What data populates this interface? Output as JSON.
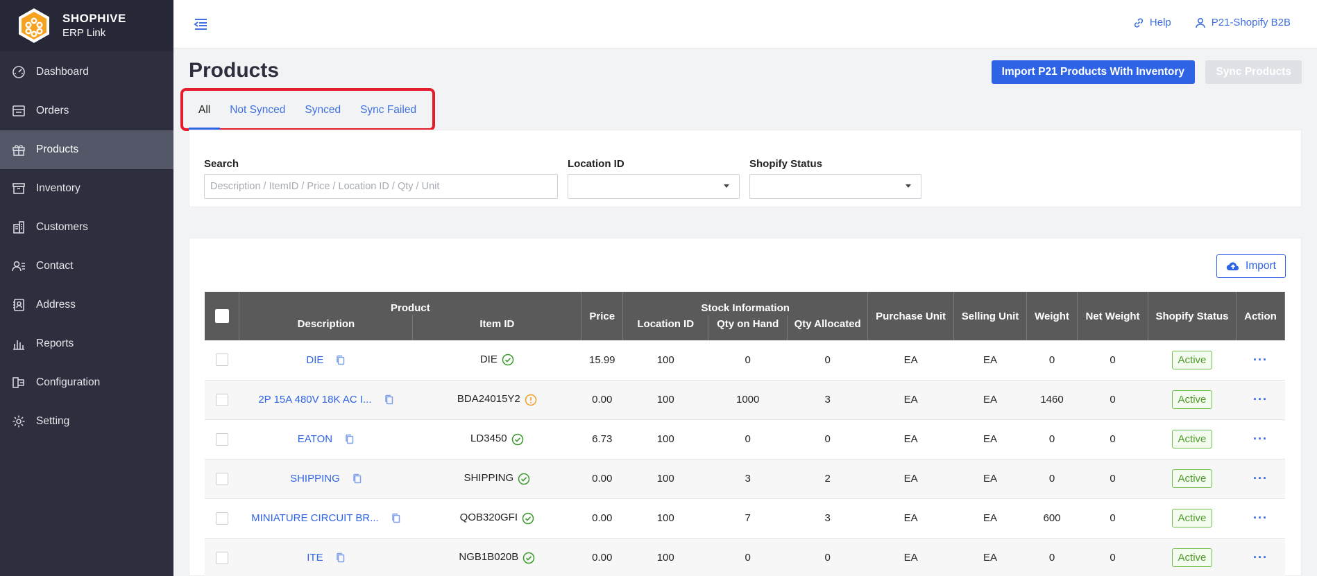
{
  "brand": {
    "name": "SHOPHIVE",
    "subtitle": "ERP Link"
  },
  "sidebar": {
    "items": [
      {
        "label": "Dashboard",
        "icon": "gauge-icon"
      },
      {
        "label": "Orders",
        "icon": "orders-icon"
      },
      {
        "label": "Products",
        "icon": "gift-icon",
        "active": true
      },
      {
        "label": "Inventory",
        "icon": "archive-icon"
      },
      {
        "label": "Customers",
        "icon": "building-icon"
      },
      {
        "label": "Contact",
        "icon": "contact-icon"
      },
      {
        "label": "Address",
        "icon": "address-book-icon"
      },
      {
        "label": "Reports",
        "icon": "bar-chart-icon"
      },
      {
        "label": "Configuration",
        "icon": "configuration-icon"
      },
      {
        "label": "Setting",
        "icon": "gear-icon"
      }
    ]
  },
  "topbar": {
    "help": "Help",
    "account": "P21-Shopify B2B"
  },
  "page": {
    "title": "Products",
    "import_button": "Import P21 Products With Inventory",
    "sync_button": "Sync Products"
  },
  "tabs": [
    "All",
    "Not Synced",
    "Synced",
    "Sync Failed"
  ],
  "filters": {
    "search_label": "Search",
    "search_placeholder": "Description / ItemID / Price / Location ID / Qty / Unit",
    "location_label": "Location ID",
    "status_label": "Shopify Status"
  },
  "table": {
    "import_button": "Import",
    "headers": {
      "product": "Product",
      "description": "Description",
      "item_id": "Item ID",
      "price": "Price",
      "stock": "Stock Information",
      "location_id": "Location ID",
      "qty_on_hand": "Qty on Hand",
      "qty_allocated": "Qty Allocated",
      "purchase_unit": "Purchase Unit",
      "selling_unit": "Selling Unit",
      "weight": "Weight",
      "net_weight": "Net Weight",
      "shopify_status": "Shopify Status",
      "action": "Action"
    },
    "rows": [
      {
        "description": "DIE",
        "item_id": "DIE",
        "sync": "ok",
        "price": "15.99",
        "location": "100",
        "on_hand": "0",
        "allocated": "0",
        "purchase_unit": "EA",
        "selling_unit": "EA",
        "weight": "0",
        "net_weight": "0",
        "status": "Active",
        "action": "···"
      },
      {
        "description": "2P 15A 480V 18K AC I...",
        "item_id": "BDA24015Y2",
        "sync": "warning",
        "price": "0.00",
        "location": "100",
        "on_hand": "1000",
        "allocated": "3",
        "purchase_unit": "EA",
        "selling_unit": "EA",
        "weight": "1460",
        "net_weight": "0",
        "status": "Active",
        "action": "···"
      },
      {
        "description": "EATON",
        "item_id": "LD3450",
        "sync": "ok",
        "price": "6.73",
        "location": "100",
        "on_hand": "0",
        "allocated": "0",
        "purchase_unit": "EA",
        "selling_unit": "EA",
        "weight": "0",
        "net_weight": "0",
        "status": "Active",
        "action": "···"
      },
      {
        "description": "SHIPPING",
        "item_id": "SHIPPING",
        "sync": "ok",
        "price": "0.00",
        "location": "100",
        "on_hand": "3",
        "allocated": "2",
        "purchase_unit": "EA",
        "selling_unit": "EA",
        "weight": "0",
        "net_weight": "0",
        "status": "Active",
        "action": "···"
      },
      {
        "description": "MINIATURE CIRCUIT BR...",
        "item_id": "QOB320GFI",
        "sync": "ok",
        "price": "0.00",
        "location": "100",
        "on_hand": "7",
        "allocated": "3",
        "purchase_unit": "EA",
        "selling_unit": "EA",
        "weight": "600",
        "net_weight": "0",
        "status": "Active",
        "action": "···"
      },
      {
        "description": "ITE",
        "item_id": "NGB1B020B",
        "sync": "ok",
        "price": "0.00",
        "location": "100",
        "on_hand": "0",
        "allocated": "0",
        "purchase_unit": "EA",
        "selling_unit": "EA",
        "weight": "0",
        "net_weight": "0",
        "status": "Active",
        "action": "···"
      }
    ]
  },
  "colors": {
    "accent": "#2f63e6",
    "sidebar": "#2d2f3e",
    "highlight": "#e41d2a",
    "success": "#4e9a2a",
    "warning": "#f0a020"
  }
}
